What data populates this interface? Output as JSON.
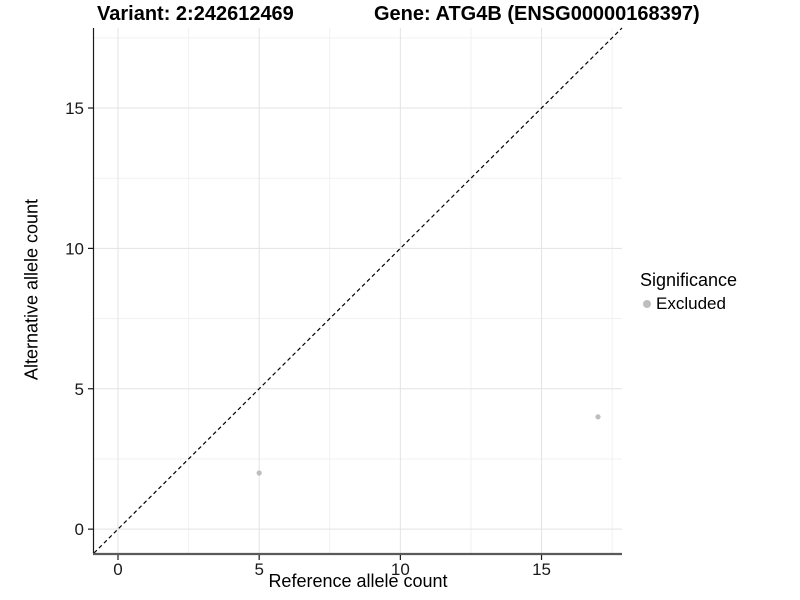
{
  "header": {
    "title_left": "Variant: 2:242612469",
    "title_right": "Gene: ATG4B (ENSG00000168397)"
  },
  "chart_data": {
    "type": "scatter",
    "title": "Variant: 2:242612469    Gene: ATG4B (ENSG00000168397)",
    "xlabel": "Reference allele count",
    "ylabel": "Alternative allele count",
    "xlim": [
      -0.85,
      17.85
    ],
    "ylim": [
      -0.85,
      17.85
    ],
    "x_ticks": [
      0,
      5,
      10,
      15
    ],
    "y_ticks": [
      0,
      5,
      10,
      15
    ],
    "minor_ticks": [
      2.5,
      7.5,
      12.5,
      17.5
    ],
    "grid": "major+minor, light gray on white panel",
    "identity_line": {
      "style": "dashed",
      "color": "#000000",
      "from": [
        -0.85,
        -0.85
      ],
      "to": [
        17.85,
        17.85
      ]
    },
    "series": [
      {
        "name": "Excluded",
        "color": "#bebebe",
        "points": [
          {
            "x": 5,
            "y": 2
          },
          {
            "x": 17,
            "y": 4
          }
        ]
      }
    ],
    "legend": {
      "title": "Significance",
      "position": "right",
      "items": [
        {
          "label": "Excluded",
          "color": "#bebebe"
        }
      ]
    },
    "colors": {
      "major_grid": "#e3e3e3",
      "minor_grid": "#f1f1f1",
      "axis_line_left": "#1a1a1a",
      "axis_line_bottom": "#5a5a5a",
      "tick_text": "#1a1a1a"
    }
  }
}
